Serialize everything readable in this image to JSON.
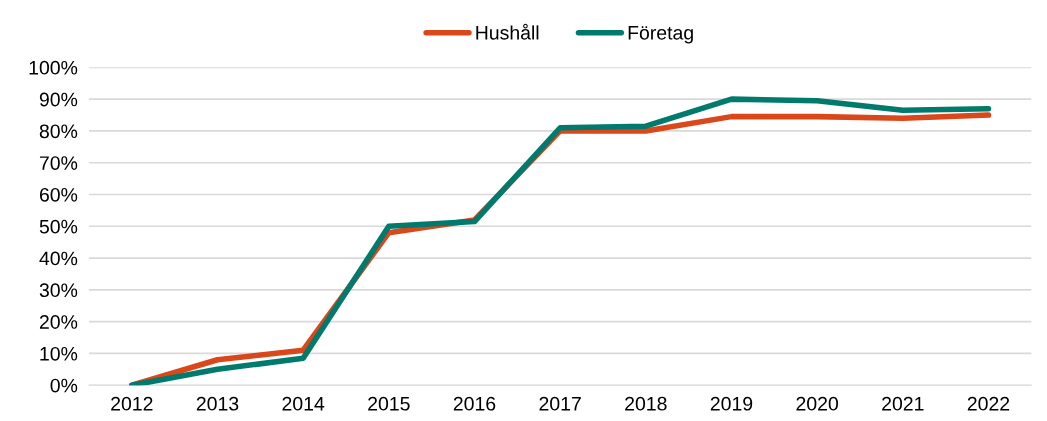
{
  "chart_data": {
    "type": "line",
    "categories": [
      "2012",
      "2013",
      "2014",
      "2015",
      "2016",
      "2017",
      "2018",
      "2019",
      "2020",
      "2021",
      "2022"
    ],
    "series": [
      {
        "name": "Hushåll",
        "color": "#d9471b",
        "values": [
          0,
          8,
          11,
          48,
          52,
          80,
          80,
          84.5,
          84.5,
          84,
          85
        ]
      },
      {
        "name": "Företag",
        "color": "#007a6c",
        "values": [
          0,
          5,
          8.5,
          50,
          51.5,
          81,
          81.5,
          90,
          89.5,
          86.5,
          87
        ]
      }
    ],
    "ylim": [
      0,
      100
    ],
    "yticks": [
      {
        "value": 0,
        "label": "0%"
      },
      {
        "value": 10,
        "label": "10%"
      },
      {
        "value": 20,
        "label": "20%"
      },
      {
        "value": 30,
        "label": "30%"
      },
      {
        "value": 40,
        "label": "40%"
      },
      {
        "value": 50,
        "label": "50%"
      },
      {
        "value": 60,
        "label": "60%"
      },
      {
        "value": 70,
        "label": "70%"
      },
      {
        "value": 80,
        "label": "80%"
      },
      {
        "value": 90,
        "label": "90%"
      },
      {
        "value": 100,
        "label": "100%"
      }
    ],
    "grid": "y",
    "legend": "top",
    "marker": "none",
    "line_style": "solid"
  }
}
